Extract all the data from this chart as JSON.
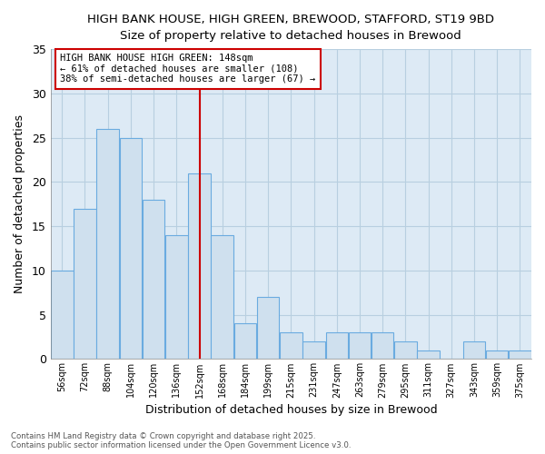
{
  "title_line1": "HIGH BANK HOUSE, HIGH GREEN, BREWOOD, STAFFORD, ST19 9BD",
  "title_line2": "Size of property relative to detached houses in Brewood",
  "xlabel": "Distribution of detached houses by size in Brewood",
  "ylabel": "Number of detached properties",
  "categories": [
    "56sqm",
    "72sqm",
    "88sqm",
    "104sqm",
    "120sqm",
    "136sqm",
    "152sqm",
    "168sqm",
    "184sqm",
    "199sqm",
    "215sqm",
    "231sqm",
    "247sqm",
    "263sqm",
    "279sqm",
    "295sqm",
    "311sqm",
    "327sqm",
    "343sqm",
    "359sqm",
    "375sqm"
  ],
  "values": [
    10,
    17,
    26,
    25,
    18,
    14,
    21,
    14,
    4,
    7,
    3,
    2,
    3,
    3,
    3,
    2,
    1,
    0,
    2,
    1,
    1
  ],
  "bar_color": "#cfe0ee",
  "bar_edge_color": "#6aabe0",
  "highlight_bar_index": 6,
  "annotation_title": "HIGH BANK HOUSE HIGH GREEN: 148sqm",
  "annotation_line1": "← 61% of detached houses are smaller (108)",
  "annotation_line2": "38% of semi-detached houses are larger (67) →",
  "annotation_box_color": "#ffffff",
  "annotation_box_edge_color": "#cc0000",
  "vline_color": "#cc0000",
  "ylim": [
    0,
    35
  ],
  "yticks": [
    0,
    5,
    10,
    15,
    20,
    25,
    30,
    35
  ],
  "grid_color": "#b8cfe0",
  "bg_color": "#ddeaf5",
  "fig_bg_color": "#ffffff",
  "footnote_line1": "Contains HM Land Registry data © Crown copyright and database right 2025.",
  "footnote_line2": "Contains public sector information licensed under the Open Government Licence v3.0."
}
